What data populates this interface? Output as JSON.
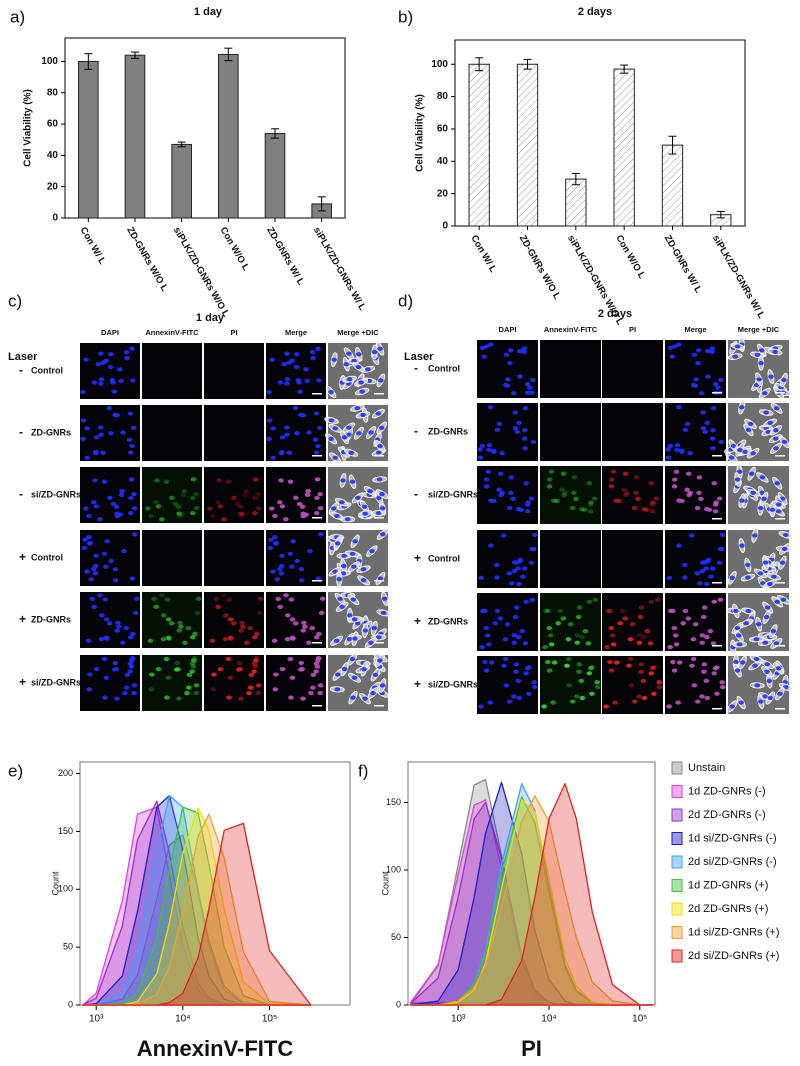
{
  "chart_data": [
    {
      "type": "bar",
      "label": "a)",
      "title": "1 day",
      "ylabel": "Cell Viability (%)",
      "categories": [
        "Con W/ L",
        "ZD-GNRs W/O L",
        "siPLK/ZD-GNRs W/O L",
        "Con W/O L",
        "ZD-GNRs W/ L",
        "siPLK/ZD-GNRs W/ L"
      ],
      "values": [
        100,
        104,
        47,
        104.5,
        54,
        9
      ],
      "errors": [
        5,
        2,
        1.5,
        4,
        3,
        4.5
      ],
      "color": "#808080",
      "ylim": [
        0,
        115
      ],
      "yticks": [
        0,
        20,
        40,
        60,
        80,
        100
      ]
    },
    {
      "type": "bar",
      "label": "b)",
      "title": "2 days",
      "ylabel": "Cell Viability (%)",
      "categories": [
        "Con W/ L",
        "ZD-GNRs W/O L",
        "siPLK/ZD-GNRs W/O L",
        "Con W/O L",
        "ZD-GNRs W/ L",
        "siPLK/ZD-GNRs W/ L"
      ],
      "values": [
        100,
        100,
        29,
        97,
        50,
        7
      ],
      "errors": [
        4,
        3,
        3.5,
        2.5,
        5.5,
        2
      ],
      "color": "#ffffff",
      "pattern": "hatch",
      "ylim": [
        0,
        115
      ],
      "yticks": [
        0,
        20,
        40,
        60,
        80,
        100
      ]
    },
    {
      "type": "area",
      "label": "e)",
      "xlabel": "AnnexinV-FITC",
      "ylabel": "Count",
      "log_x": true,
      "x": [
        700,
        1000,
        2000,
        3000,
        5000,
        7000,
        10000,
        15000,
        20000,
        30000,
        50000,
        100000,
        300000
      ],
      "xlim": [
        650,
        850000
      ],
      "xticks": [
        {
          "value": 1000,
          "label": "10³"
        },
        {
          "value": 10000,
          "label": "10⁴"
        },
        {
          "value": 100000,
          "label": "10⁵"
        }
      ],
      "ylim": [
        0,
        210
      ],
      "yticks": [
        0,
        50,
        100,
        150,
        200
      ],
      "series": [
        {
          "color": "#8a8a8a",
          "values": [
            0,
            0,
            5,
            26,
            92,
            138,
            147,
            98,
            56,
            16,
            2,
            0,
            0
          ]
        },
        {
          "color": "#e040e0",
          "values": [
            0,
            10,
            90,
            165,
            171,
            112,
            51,
            13,
            4,
            0,
            0,
            0,
            0
          ]
        },
        {
          "color": "#9b30c8",
          "values": [
            0,
            6,
            68,
            143,
            176,
            131,
            68,
            19,
            6,
            1,
            0,
            0,
            0
          ]
        },
        {
          "color": "#2020c0",
          "values": [
            0,
            1,
            25,
            81,
            171,
            181,
            134,
            58,
            25,
            5,
            0,
            0,
            0
          ]
        },
        {
          "color": "#40a0ff",
          "values": [
            0,
            0,
            10,
            45,
            134,
            181,
            171,
            99,
            51,
            13,
            1,
            0,
            0
          ]
        },
        {
          "color": "#40c040",
          "values": [
            0,
            0,
            1,
            10,
            57,
            117,
            171,
            166,
            122,
            50,
            8,
            0,
            0
          ]
        },
        {
          "color": "#f0e000",
          "values": [
            0,
            0,
            0,
            3,
            27,
            71,
            131,
            170,
            151,
            83,
            20,
            1,
            0
          ]
        },
        {
          "color": "#f0a030",
          "values": [
            0,
            0,
            0,
            1,
            9,
            33,
            80,
            146,
            165,
            127,
            46,
            3,
            0
          ]
        },
        {
          "color": "#e02020",
          "values": [
            0,
            0,
            0,
            0,
            0,
            2,
            10,
            41,
            83,
            151,
            157,
            47,
            0
          ]
        }
      ]
    },
    {
      "type": "area",
      "label": "f)",
      "xlabel": "PI",
      "ylabel": "Count",
      "log_x": true,
      "legend": "right",
      "x": [
        300,
        600,
        1000,
        1500,
        2000,
        3000,
        5000,
        7000,
        10000,
        15000,
        20000,
        30000,
        50000,
        100000,
        140000
      ],
      "xlim": [
        280,
        147000
      ],
      "xticks": [
        {
          "value": 1000,
          "label": "10³"
        },
        {
          "value": 10000,
          "label": "10⁴"
        },
        {
          "value": 100000,
          "label": "10⁵"
        }
      ],
      "ylim": [
        0,
        180
      ],
      "yticks": [
        0,
        50,
        100,
        150
      ],
      "series": [
        {
          "name": "Unstain",
          "color": "#8a8a8a",
          "values": [
            1,
            29,
            104,
            163,
            167,
            111,
            34,
            10,
            2,
            0,
            0,
            0,
            0,
            0,
            0
          ]
        },
        {
          "name": "1d ZD-GNRs (-)",
          "color": "#e040e0",
          "values": [
            2,
            30,
            97,
            148,
            152,
            102,
            33,
            9,
            2,
            0,
            0,
            0,
            0,
            0,
            0
          ]
        },
        {
          "name": "2d ZD-GNRs (-)",
          "color": "#9b30c8",
          "values": [
            1,
            20,
            80,
            138,
            150,
            109,
            37,
            11,
            2,
            0,
            0,
            0,
            0,
            0,
            0
          ]
        },
        {
          "name": "1d si/ZD-GNRs (-)",
          "color": "#2020c0",
          "values": [
            0,
            3,
            26,
            80,
            127,
            165,
            112,
            55,
            19,
            3,
            0,
            0,
            0,
            0,
            0
          ]
        },
        {
          "name": "2d si/ZD-GNRs (-)",
          "color": "#40a0ff",
          "values": [
            0,
            0,
            3,
            16,
            40,
            104,
            164,
            144,
            88,
            30,
            11,
            2,
            0,
            0,
            0
          ]
        },
        {
          "name": "1d ZD-GNRs (+)",
          "color": "#40c040",
          "values": [
            0,
            0,
            3,
            15,
            38,
            98,
            154,
            135,
            83,
            28,
            10,
            2,
            0,
            0,
            0
          ]
        },
        {
          "name": "2d ZD-GNRs (+)",
          "color": "#f0e000",
          "values": [
            0,
            0,
            2,
            11,
            31,
            86,
            152,
            143,
            94,
            35,
            14,
            2,
            0,
            0,
            0
          ]
        },
        {
          "name": "1d si/ZD-GNRs (+)",
          "color": "#f0a030",
          "values": [
            0,
            0,
            3,
            13,
            29,
            72,
            136,
            155,
            136,
            84,
            50,
            17,
            3,
            0,
            0
          ]
        },
        {
          "name": "2d si/ZD-GNRs (+)",
          "color": "#e02020",
          "values": [
            0,
            0,
            0,
            0,
            0,
            4,
            33,
            80,
            138,
            164,
            138,
            69,
            15,
            0,
            0
          ]
        }
      ]
    }
  ],
  "micrographs": [
    {
      "label": "c)",
      "title": "1 day",
      "laser_header": "Laser",
      "columns": [
        "DAPI",
        "AnnexinV-FITC",
        "PI",
        "Merge",
        "Merge +DIC"
      ],
      "rows": [
        {
          "laser": "-",
          "sample": "Control"
        },
        {
          "laser": "-",
          "sample": "ZD-GNRs"
        },
        {
          "laser": "-",
          "sample": "si/ZD-GNRs"
        },
        {
          "laser": "+",
          "sample": "Control"
        },
        {
          "laser": "+",
          "sample": "ZD-GNRs"
        },
        {
          "laser": "+",
          "sample": "si/ZD-GNRs"
        }
      ]
    },
    {
      "label": "d)",
      "title": "2 days",
      "laser_header": "Laser",
      "columns": [
        "DAPI",
        "AnnexinV-FITC",
        "PI",
        "Merge",
        "Merge +DIC"
      ],
      "rows": [
        {
          "laser": "-",
          "sample": "Control"
        },
        {
          "laser": "-",
          "sample": "ZD-GNRs"
        },
        {
          "laser": "-",
          "sample": "si/ZD-GNRs"
        },
        {
          "laser": "+",
          "sample": "Control"
        },
        {
          "laser": "+",
          "sample": "ZD-GNRs"
        },
        {
          "laser": "+",
          "sample": "si/ZD-GNRs"
        }
      ]
    }
  ]
}
